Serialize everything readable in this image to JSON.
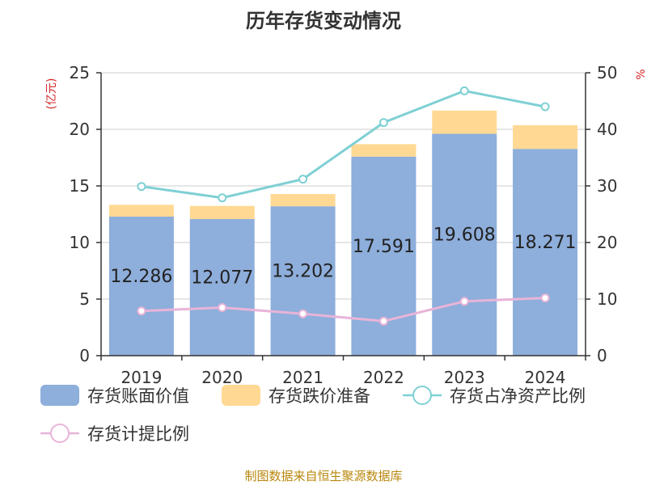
{
  "title": "历年存货变动情况",
  "source": "制图数据来自恒生聚源数据库",
  "left_unit": "(亿元)",
  "right_unit": "%",
  "colors": {
    "book": "#8eaedb",
    "provision": "#ffd993",
    "net_ratio": "#7fd0d4",
    "provision_ratio": "#e8b4d8"
  },
  "chart_data": {
    "type": "bar",
    "categories": [
      "2019",
      "2020",
      "2021",
      "2022",
      "2023",
      "2024"
    ],
    "series": [
      {
        "name": "存货账面价值",
        "type": "bar",
        "axis": "left",
        "values": [
          12.286,
          12.077,
          13.202,
          17.591,
          19.608,
          18.271
        ]
      },
      {
        "name": "存货跌价准备",
        "type": "bar",
        "axis": "left",
        "stacked": true,
        "values": [
          1.05,
          1.16,
          1.08,
          1.1,
          2.05,
          2.1
        ]
      },
      {
        "name": "存货占净资产比例",
        "type": "line",
        "axis": "right",
        "values": [
          29.9,
          27.9,
          31.2,
          41.2,
          46.8,
          44.0
        ]
      },
      {
        "name": "存货计提比例",
        "type": "line",
        "axis": "right",
        "values": [
          7.9,
          8.5,
          7.4,
          6.1,
          9.6,
          10.2
        ]
      }
    ],
    "ylim": [
      0,
      25
    ],
    "y2lim": [
      0,
      50
    ],
    "yticks": [
      "0",
      "5",
      "10",
      "15",
      "20",
      "25"
    ],
    "y2ticks": [
      "0",
      "10",
      "20",
      "30",
      "40",
      "50"
    ],
    "data_labels": [
      "12.286",
      "12.077",
      "13.202",
      "17.591",
      "19.608",
      "18.271"
    ],
    "grid": true,
    "legend_position": "bottom"
  }
}
